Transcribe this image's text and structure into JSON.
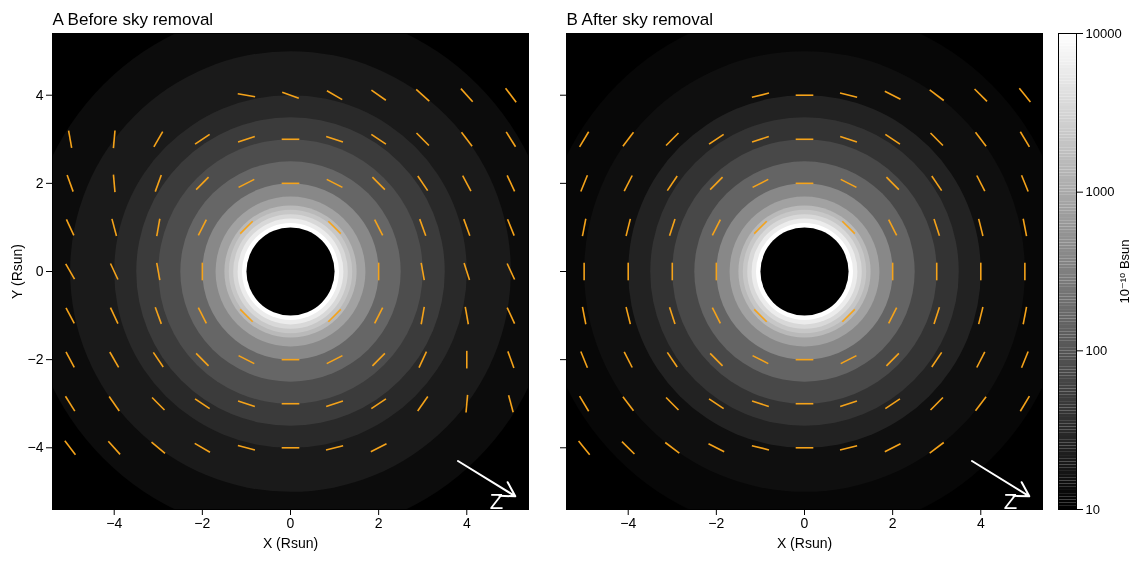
{
  "chart_data": [
    {
      "type": "heatmap",
      "title": "A Before sky removal",
      "xlabel": "X (Rsun)",
      "ylabel": "Y (Rsun)",
      "xlim": [
        -5.4,
        5.4
      ],
      "ylim": [
        -5.4,
        5.4
      ],
      "xticks": [
        -4,
        -2,
        0,
        2,
        4
      ],
      "yticks": [
        -4,
        -2,
        0,
        2,
        4
      ],
      "occulter": {
        "x": 0,
        "y": 0,
        "r": 1
      },
      "radial_profile": {
        "r": [
          1.1,
          1.2,
          1.3,
          1.4,
          1.5,
          1.7,
          2.0,
          2.5,
          3.0,
          3.5,
          4.0,
          5.0,
          6.0,
          7.7
        ],
        "values": [
          10000,
          6000,
          3500,
          2200,
          1500,
          800,
          400,
          160,
          80,
          50,
          30,
          20,
          14,
          10
        ]
      },
      "sky_band": {
        "x": [
          -5.4,
          5.4
        ],
        "top": [
          3.6,
          4.8
        ],
        "bottom": [
          -4.9,
          -3.7
        ],
        "value": 25
      },
      "vectors": {
        "color": "#f5a31a",
        "x": [
          -5,
          -4,
          -3,
          -2,
          -1,
          0,
          1,
          2,
          3,
          4,
          5
        ],
        "y": [
          5,
          4,
          3,
          2,
          1,
          0,
          -1,
          -2,
          -3,
          -4,
          -5
        ],
        "angle": [
          [
            null,
            null,
            null,
            null,
            null,
            null,
            null,
            null,
            null,
            null,
            null
          ],
          [
            null,
            null,
            null,
            null,
            170,
            160,
            150,
            145,
            138,
            132,
            127
          ],
          [
            100,
            85,
            60,
            34,
            18,
            0,
            162,
            146,
            135,
            127,
            122
          ],
          [
            110,
            95,
            70,
            45,
            27,
            0,
            153,
            135,
            124,
            118,
            115
          ],
          [
            115,
            105,
            80,
            63,
            45,
            null,
            135,
            117,
            110,
            110,
            112
          ],
          [
            120,
            115,
            100,
            90,
            null,
            null,
            null,
            90,
            100,
            108,
            115
          ],
          [
            118,
            115,
            110,
            117,
            135,
            null,
            45,
            63,
            80,
            100,
            115
          ],
          [
            118,
            120,
            124,
            135,
            153,
            0,
            27,
            45,
            65,
            90,
            110
          ],
          [
            122,
            125,
            135,
            146,
            162,
            0,
            18,
            34,
            55,
            85,
            105
          ],
          [
            127,
            132,
            140,
            150,
            165,
            0,
            14,
            27,
            null,
            null,
            null
          ],
          [
            null,
            null,
            null,
            null,
            null,
            null,
            null,
            null,
            null,
            null,
            null
          ]
        ]
      },
      "annotation": {
        "text": "Z",
        "x1": 3.8,
        "y1": -4.3,
        "x2": 5.1,
        "y2": -5.1
      }
    },
    {
      "type": "heatmap",
      "title": "B After sky removal",
      "xlabel": "X (Rsun)",
      "tick_labels": "x",
      "xlim": [
        -5.4,
        5.4
      ],
      "ylim": [
        -5.4,
        5.4
      ],
      "xticks": [
        -4,
        -2,
        0,
        2,
        4
      ],
      "yticks": [
        -4,
        -2,
        0,
        2,
        4
      ],
      "occulter": {
        "x": 0,
        "y": 0,
        "r": 1
      },
      "radial_profile": {
        "r": [
          1.1,
          1.2,
          1.3,
          1.4,
          1.5,
          1.7,
          2.0,
          2.5,
          3.0,
          3.5,
          4.0,
          5.0,
          6.0,
          7.7
        ],
        "values": [
          10000,
          6000,
          3500,
          2200,
          1500,
          800,
          400,
          150,
          70,
          40,
          25,
          15,
          12,
          10
        ]
      },
      "vectors": {
        "color": "#f5a31a",
        "x": [
          -5,
          -4,
          -3,
          -2,
          -1,
          0,
          1,
          2,
          3,
          4,
          5
        ],
        "y": [
          5,
          4,
          3,
          2,
          1,
          0,
          -1,
          -2,
          -3,
          -4,
          -5
        ],
        "angle": [
          [
            null,
            null,
            null,
            null,
            null,
            null,
            null,
            null,
            null,
            null,
            null
          ],
          [
            null,
            null,
            null,
            null,
            14,
            0,
            166,
            153,
            143,
            135,
            129
          ],
          [
            59,
            53,
            45,
            34,
            18,
            0,
            162,
            146,
            135,
            127,
            121
          ],
          [
            68,
            63,
            56,
            45,
            27,
            0,
            153,
            135,
            124,
            117,
            112
          ],
          [
            79,
            76,
            72,
            63,
            45,
            null,
            135,
            117,
            108,
            104,
            101
          ],
          [
            90,
            90,
            90,
            90,
            null,
            null,
            null,
            90,
            90,
            90,
            90
          ],
          [
            101,
            104,
            108,
            117,
            135,
            null,
            45,
            63,
            72,
            76,
            79
          ],
          [
            112,
            117,
            124,
            135,
            153,
            0,
            27,
            45,
            56,
            63,
            68
          ],
          [
            121,
            127,
            135,
            146,
            162,
            0,
            18,
            34,
            45,
            53,
            59
          ],
          [
            129,
            135,
            143,
            153,
            166,
            0,
            14,
            27,
            37,
            null,
            null
          ],
          [
            null,
            null,
            null,
            null,
            null,
            null,
            null,
            null,
            null,
            null,
            null
          ]
        ]
      },
      "annotation": {
        "text": "Z",
        "x1": 3.8,
        "y1": -4.3,
        "x2": 5.1,
        "y2": -5.1
      }
    }
  ],
  "colorbar": {
    "label": "10⁻¹⁰ Bsun",
    "lim": [
      10,
      10000
    ],
    "ticks": [
      10,
      100,
      1000,
      10000
    ],
    "log": true
  }
}
